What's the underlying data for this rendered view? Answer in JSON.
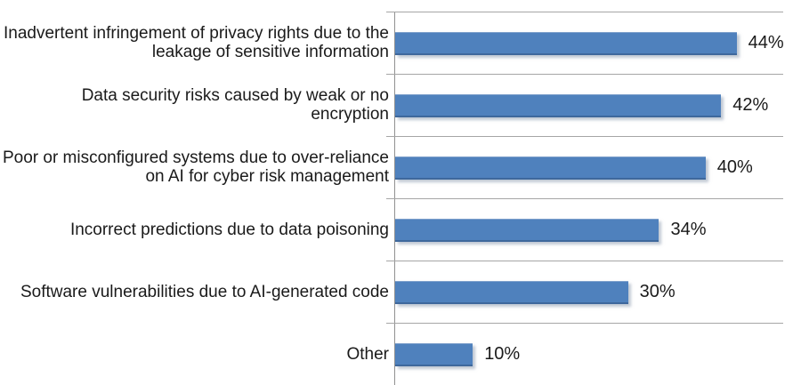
{
  "chart_data": {
    "type": "bar",
    "orientation": "horizontal",
    "title": "",
    "xlabel": "",
    "ylabel": "",
    "categories": [
      "Inadvertent infringement of privacy rights due to the leakage of sensitive information",
      "Data security risks caused by weak or no encryption",
      "Poor or misconfigured systems due to over-reliance on AI for cyber risk management",
      "Incorrect predictions due to data poisoning",
      "Software vulnerabilities due to AI-generated code",
      "Other"
    ],
    "values": [
      44,
      42,
      40,
      34,
      30,
      10
    ],
    "value_labels": [
      "44%",
      "42%",
      "40%",
      "34%",
      "30%",
      "10%"
    ],
    "xlim": [
      0,
      50
    ],
    "grid": "horizontal category-separator gridlines with axis ticks, no x-axis tick labels",
    "legend": "none",
    "data_labels": "outside end of bars",
    "colors": {
      "bar": "#4F81BD",
      "bar_border": "#3E689C",
      "bar_top_edge": "#7FA1CC",
      "gridline": "#A6A6A6",
      "axis": "#919191",
      "text": "#1A1A1A",
      "background": "#FFFFFF"
    }
  }
}
